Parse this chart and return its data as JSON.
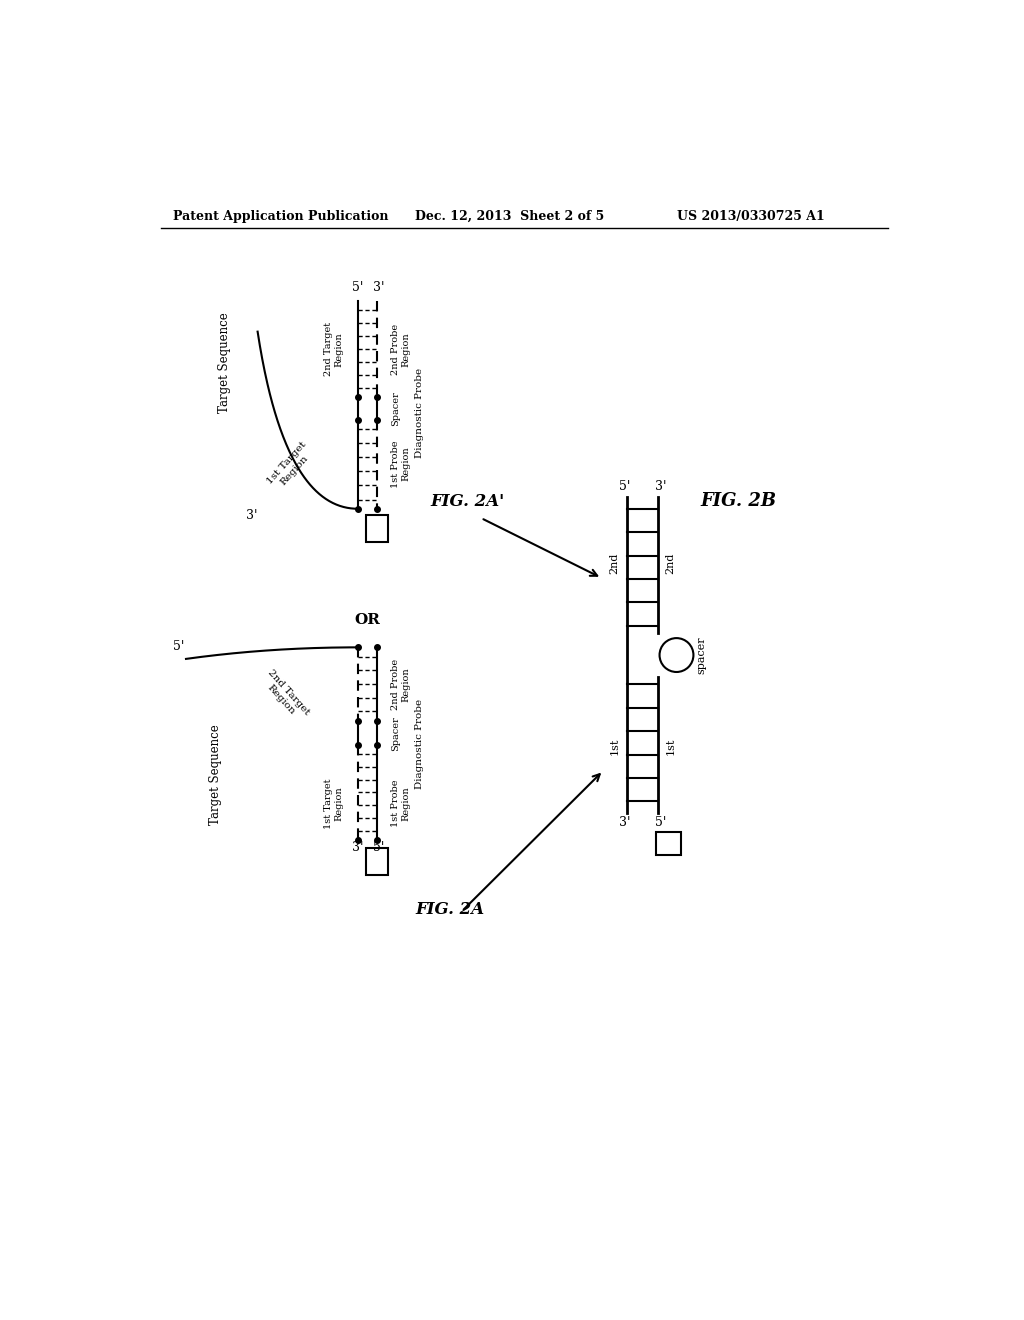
{
  "bg_color": "#ffffff",
  "header_left": "Patent Application Publication",
  "header_mid": "Dec. 12, 2013  Sheet 2 of 5",
  "header_right": "US 2013/0330725 A1",
  "fig_label_2A": "FIG. 2A",
  "fig_label_2Ap": "FIG. 2A'",
  "fig_label_2B": "FIG. 2B"
}
